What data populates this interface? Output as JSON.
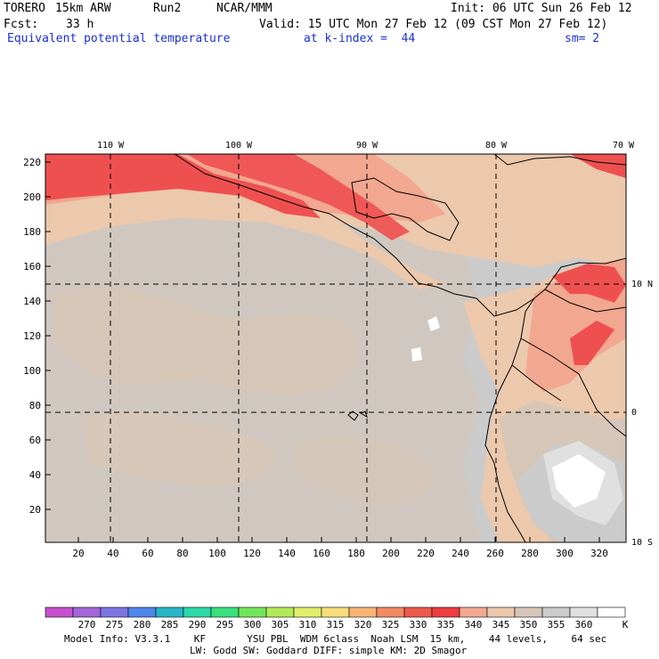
{
  "header": {
    "model": "TORERO",
    "resolution": "15km ARW",
    "run": "Run2",
    "org": "NCAR/MMM",
    "init": "Init: 06 UTC Sun 26 Feb 12",
    "fcst_label": "Fcst:",
    "fcst_value": "33 h",
    "valid": "Valid: 15 UTC Mon 27 Feb 12 (09 CST Mon 27 Feb 12)",
    "field": "Equivalent potential temperature",
    "level": "at k-index =  44",
    "smoothing": "sm= 2"
  },
  "map": {
    "lon_labels": [
      "110 W",
      "100 W",
      "90 W",
      "80 W",
      "70 W"
    ],
    "lat_labels": [
      "10 N",
      "0",
      "10 S"
    ],
    "x_ticks": [
      "20",
      "40",
      "60",
      "80",
      "100",
      "120",
      "140",
      "160",
      "180",
      "200",
      "220",
      "240",
      "260",
      "280",
      "300",
      "320"
    ],
    "y_ticks": [
      "220",
      "200",
      "180",
      "160",
      "140",
      "120",
      "100",
      "80",
      "60",
      "40",
      "20"
    ],
    "colors": {
      "ocean": "#cbcbcb",
      "tan": "#d6c6b8",
      "peach": "#ecc8ac",
      "salmon": "#f2a790",
      "red": "#ee5050",
      "grey_light": "#e0e0e0",
      "white": "#ffffff"
    }
  },
  "colorbar": {
    "labels": [
      "270",
      "275",
      "280",
      "285",
      "290",
      "295",
      "300",
      "305",
      "310",
      "315",
      "320",
      "325",
      "330",
      "335",
      "340",
      "345",
      "350",
      "355",
      "360"
    ],
    "unit": "K",
    "colors": [
      "#c64fd0",
      "#a266d8",
      "#7d74e4",
      "#4e86ea",
      "#27b6c8",
      "#2cd9a8",
      "#39e07c",
      "#72e65a",
      "#b2ea5a",
      "#e2ee6a",
      "#f6df78",
      "#f8b472",
      "#f28a62",
      "#ec5a4c",
      "#ee3c40",
      "#f3a790",
      "#ecc8ac",
      "#d6c6b8",
      "#cbcbcb",
      "#e0e0e0",
      "#ffffff"
    ]
  },
  "footer": {
    "line1": "Model Info: V3.3.1    KF       YSU PBL  WDM 6class  Noah LSM  15 km,    44 levels,    64 sec",
    "line2": "LW: Godd SW: Goddard DIFF: simple KM: 2D Smagor"
  }
}
